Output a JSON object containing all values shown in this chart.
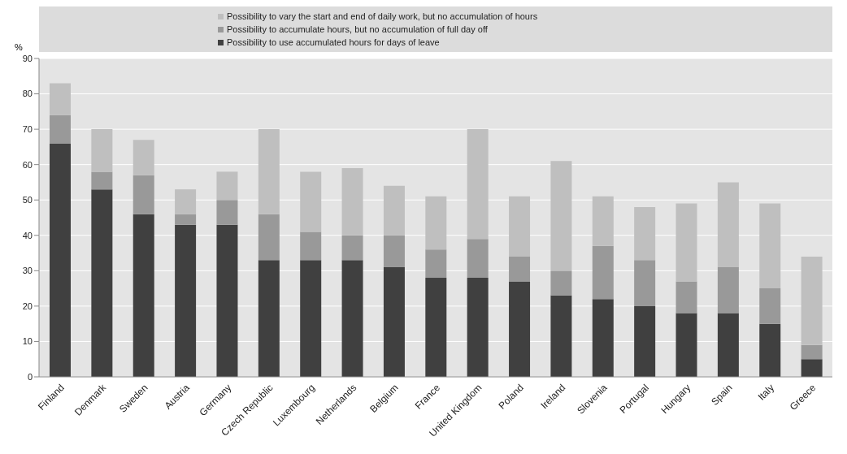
{
  "chart_data": {
    "type": "bar",
    "stacked": true,
    "ylabel": "%",
    "categories": [
      "Finland",
      "Denmark",
      "Sweden",
      "Austria",
      "Germany",
      "Czech Republic",
      "Luxembourg",
      "Netherlands",
      "Belgium",
      "France",
      "United Kingdom",
      "Poland",
      "Ireland",
      "Slovenia",
      "Portugal",
      "Hungary",
      "Spain",
      "Italy",
      "Greece"
    ],
    "series": [
      {
        "name": "Possibility to use accumulated hours for days of leave",
        "color": "#404040",
        "values": [
          66,
          53,
          46,
          43,
          43,
          33,
          33,
          33,
          31,
          28,
          28,
          27,
          23,
          22,
          20,
          18,
          18,
          15,
          5
        ]
      },
      {
        "name": "Possibility to accumulate hours, but no accumulation of full day off",
        "color": "#999999",
        "values": [
          8,
          5,
          11,
          3,
          7,
          13,
          8,
          7,
          9,
          8,
          11,
          7,
          7,
          15,
          13,
          9,
          13,
          10,
          4
        ]
      },
      {
        "name": "Possibility to vary the start and end of daily work, but no accumulation of hours",
        "color": "#bfbfbf",
        "values": [
          9,
          12,
          10,
          7,
          8,
          24,
          17,
          19,
          14,
          15,
          31,
          17,
          31,
          14,
          15,
          22,
          24,
          24,
          25
        ]
      }
    ],
    "ylim": [
      0,
      90
    ],
    "yticks": [
      0,
      10,
      20,
      30,
      40,
      50,
      60,
      70,
      80,
      90
    ],
    "grid": "y",
    "legend": "top"
  }
}
